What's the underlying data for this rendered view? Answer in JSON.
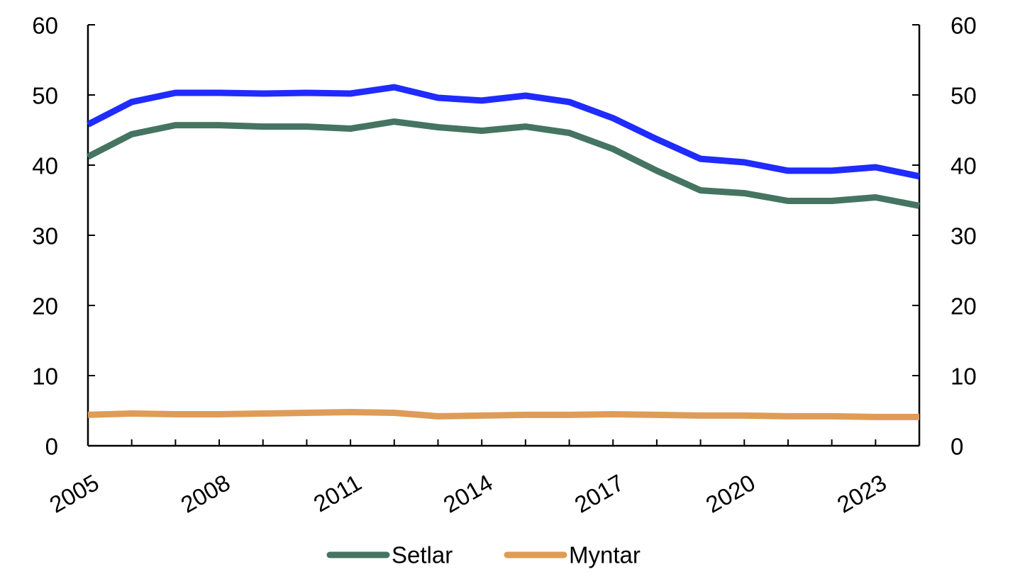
{
  "chart_data": {
    "type": "line",
    "x": [
      2005,
      2006,
      2007,
      2008,
      2009,
      2010,
      2011,
      2012,
      2013,
      2014,
      2015,
      2016,
      2017,
      2018,
      2019,
      2020,
      2021,
      2022,
      2023,
      2024
    ],
    "x_tick_labels": [
      "2005",
      "2008",
      "2011",
      "2014",
      "2017",
      "2020",
      "2023"
    ],
    "y_tick_labels": [
      "0",
      "10",
      "20",
      "30",
      "40",
      "50",
      "60"
    ],
    "ylim": [
      0,
      60
    ],
    "ylim_right": [
      0,
      60
    ],
    "grid": false,
    "legend_position": "bottom",
    "series": [
      {
        "color": "#1f2bff",
        "values": [
          45.8,
          49.0,
          50.3,
          50.3,
          50.2,
          50.3,
          50.2,
          51.1,
          49.6,
          49.2,
          49.9,
          49.0,
          46.7,
          43.7,
          40.9,
          40.4,
          39.2,
          39.2,
          39.7,
          38.4
        ]
      },
      {
        "name": "Setlar",
        "color": "#457462",
        "values": [
          41.2,
          44.4,
          45.7,
          45.7,
          45.5,
          45.5,
          45.2,
          46.2,
          45.4,
          44.9,
          45.5,
          44.6,
          42.3,
          39.2,
          36.4,
          36.0,
          34.9,
          34.9,
          35.4,
          34.2
        ]
      },
      {
        "name": "Myntar",
        "color": "#df9c57",
        "values": [
          4.4,
          4.6,
          4.5,
          4.5,
          4.6,
          4.7,
          4.8,
          4.7,
          4.2,
          4.3,
          4.4,
          4.4,
          4.5,
          4.4,
          4.3,
          4.3,
          4.2,
          4.2,
          4.1,
          4.1
        ]
      }
    ]
  }
}
